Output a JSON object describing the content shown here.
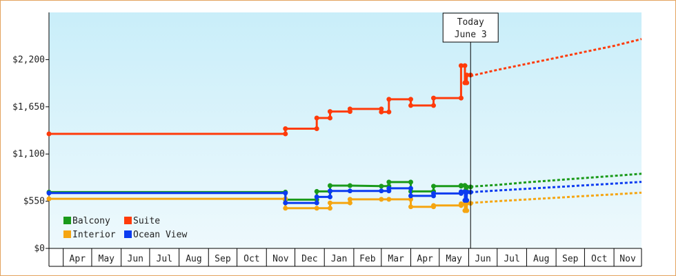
{
  "chart_data": {
    "type": "line",
    "title": "",
    "xlabel": "",
    "ylabel": "",
    "x_range": [
      "2023-03-17",
      "2024-11-30"
    ],
    "ylim": [
      0,
      2750
    ],
    "y_ticks": [
      {
        "value": 0,
        "label": "$0"
      },
      {
        "value": 550,
        "label": "$550"
      },
      {
        "value": 1100,
        "label": "$1,100"
      },
      {
        "value": 1650,
        "label": "$1,650"
      },
      {
        "value": 2200,
        "label": "$2,200"
      }
    ],
    "x_ticks": [
      {
        "start": "2023-04-01",
        "end": "2023-05-01",
        "label": "Apr"
      },
      {
        "start": "2023-05-01",
        "end": "2023-06-01",
        "label": "May"
      },
      {
        "start": "2023-06-01",
        "end": "2023-07-01",
        "label": "Jun"
      },
      {
        "start": "2023-07-01",
        "end": "2023-08-01",
        "label": "Jul"
      },
      {
        "start": "2023-08-01",
        "end": "2023-09-01",
        "label": "Aug"
      },
      {
        "start": "2023-09-01",
        "end": "2023-10-01",
        "label": "Sep"
      },
      {
        "start": "2023-10-01",
        "end": "2023-11-01",
        "label": "Oct"
      },
      {
        "start": "2023-11-01",
        "end": "2023-12-01",
        "label": "Nov"
      },
      {
        "start": "2023-12-01",
        "end": "2024-01-01",
        "label": "Dec"
      },
      {
        "start": "2024-01-01",
        "end": "2024-02-01",
        "label": "Jan"
      },
      {
        "start": "2024-02-01",
        "end": "2024-03-01",
        "label": "Feb"
      },
      {
        "start": "2024-03-01",
        "end": "2024-04-01",
        "label": "Mar"
      },
      {
        "start": "2024-04-01",
        "end": "2024-05-01",
        "label": "Apr"
      },
      {
        "start": "2024-05-01",
        "end": "2024-06-01",
        "label": "May"
      },
      {
        "start": "2024-06-01",
        "end": "2024-07-01",
        "label": "Jun"
      },
      {
        "start": "2024-07-01",
        "end": "2024-08-01",
        "label": "Jul"
      },
      {
        "start": "2024-08-01",
        "end": "2024-09-01",
        "label": "Aug"
      },
      {
        "start": "2024-09-01",
        "end": "2024-10-01",
        "label": "Sep"
      },
      {
        "start": "2024-10-01",
        "end": "2024-11-01",
        "label": "Oct"
      },
      {
        "start": "2024-11-01",
        "end": "2024-12-01",
        "label": "Nov"
      }
    ],
    "today": {
      "date": "2024-06-03",
      "line1": "Today",
      "line2": "June 3"
    },
    "grid": false,
    "legend_position": "bottom-left",
    "background_gradient": [
      "#c9eef9",
      "#eef9fd"
    ],
    "series": [
      {
        "name": "Balcony",
        "color": "#1a9a1a",
        "points": [
          [
            "2023-03-17",
            656
          ],
          [
            "2023-11-21",
            656
          ],
          [
            "2023-11-21",
            568
          ],
          [
            "2023-12-24",
            568
          ],
          [
            "2023-12-24",
            664
          ],
          [
            "2024-01-07",
            664
          ],
          [
            "2024-01-07",
            732
          ],
          [
            "2024-01-28",
            732
          ],
          [
            "2024-03-01",
            725
          ],
          [
            "2024-03-09",
            725
          ],
          [
            "2024-03-09",
            773
          ],
          [
            "2024-04-01",
            773
          ],
          [
            "2024-04-01",
            664
          ],
          [
            "2024-04-25",
            664
          ],
          [
            "2024-04-25",
            725
          ],
          [
            "2024-05-24",
            725
          ],
          [
            "2024-05-24",
            734
          ],
          [
            "2024-05-28",
            734
          ],
          [
            "2024-05-28",
            664
          ],
          [
            "2024-05-30",
            664
          ],
          [
            "2024-05-30",
            716
          ],
          [
            "2024-06-03",
            716
          ]
        ],
        "projection": [
          [
            "2024-06-03",
            720
          ],
          [
            "2024-07-01",
            740
          ],
          [
            "2024-08-01",
            770
          ],
          [
            "2024-09-01",
            795
          ],
          [
            "2024-10-01",
            820
          ],
          [
            "2024-11-01",
            845
          ],
          [
            "2024-11-30",
            870
          ]
        ]
      },
      {
        "name": "Suite",
        "color": "#ff3b0a",
        "points": [
          [
            "2023-03-17",
            1335
          ],
          [
            "2023-11-21",
            1335
          ],
          [
            "2023-11-21",
            1395
          ],
          [
            "2023-12-24",
            1395
          ],
          [
            "2023-12-24",
            1520
          ],
          [
            "2024-01-07",
            1520
          ],
          [
            "2024-01-07",
            1595
          ],
          [
            "2024-01-28",
            1595
          ],
          [
            "2024-01-28",
            1625
          ],
          [
            "2024-03-01",
            1625
          ],
          [
            "2024-03-01",
            1590
          ],
          [
            "2024-03-09",
            1590
          ],
          [
            "2024-03-09",
            1738
          ],
          [
            "2024-04-01",
            1738
          ],
          [
            "2024-04-01",
            1665
          ],
          [
            "2024-04-25",
            1665
          ],
          [
            "2024-04-25",
            1752
          ],
          [
            "2024-05-24",
            1752
          ],
          [
            "2024-05-24",
            2130
          ],
          [
            "2024-05-28",
            2130
          ],
          [
            "2024-05-28",
            1930
          ],
          [
            "2024-05-30",
            1930
          ],
          [
            "2024-05-30",
            2020
          ],
          [
            "2024-06-03",
            2020
          ]
        ],
        "projection": [
          [
            "2024-06-03",
            2010
          ],
          [
            "2024-07-01",
            2080
          ],
          [
            "2024-08-01",
            2150
          ],
          [
            "2024-09-01",
            2220
          ],
          [
            "2024-10-01",
            2290
          ],
          [
            "2024-11-01",
            2360
          ],
          [
            "2024-11-30",
            2440
          ]
        ]
      },
      {
        "name": "Interior",
        "color": "#f5a511",
        "points": [
          [
            "2023-03-17",
            578
          ],
          [
            "2023-11-21",
            578
          ],
          [
            "2023-11-21",
            468
          ],
          [
            "2023-12-24",
            468
          ],
          [
            "2024-01-07",
            468
          ],
          [
            "2024-01-07",
            530
          ],
          [
            "2024-01-28",
            530
          ],
          [
            "2024-01-28",
            572
          ],
          [
            "2024-03-01",
            572
          ],
          [
            "2024-03-09",
            572
          ],
          [
            "2024-04-01",
            572
          ],
          [
            "2024-04-01",
            485
          ],
          [
            "2024-04-25",
            485
          ],
          [
            "2024-04-25",
            500
          ],
          [
            "2024-05-24",
            500
          ],
          [
            "2024-05-24",
            520
          ],
          [
            "2024-05-28",
            520
          ],
          [
            "2024-05-28",
            440
          ],
          [
            "2024-05-30",
            440
          ],
          [
            "2024-05-30",
            525
          ],
          [
            "2024-06-03",
            525
          ]
        ],
        "projection": [
          [
            "2024-06-03",
            530
          ],
          [
            "2024-07-01",
            550
          ],
          [
            "2024-08-01",
            570
          ],
          [
            "2024-09-01",
            590
          ],
          [
            "2024-10-01",
            610
          ],
          [
            "2024-11-01",
            630
          ],
          [
            "2024-11-30",
            650
          ]
        ]
      },
      {
        "name": "Ocean View",
        "color": "#0b3bf0",
        "points": [
          [
            "2023-03-17",
            645
          ],
          [
            "2023-11-21",
            645
          ],
          [
            "2023-11-21",
            530
          ],
          [
            "2023-12-24",
            530
          ],
          [
            "2023-12-24",
            600
          ],
          [
            "2024-01-07",
            600
          ],
          [
            "2024-01-07",
            670
          ],
          [
            "2024-01-28",
            670
          ],
          [
            "2024-03-01",
            670
          ],
          [
            "2024-03-09",
            670
          ],
          [
            "2024-03-09",
            700
          ],
          [
            "2024-04-01",
            700
          ],
          [
            "2024-04-01",
            612
          ],
          [
            "2024-04-25",
            612
          ],
          [
            "2024-04-25",
            640
          ],
          [
            "2024-05-24",
            640
          ],
          [
            "2024-05-24",
            660
          ],
          [
            "2024-05-28",
            660
          ],
          [
            "2024-05-28",
            560
          ],
          [
            "2024-05-30",
            560
          ],
          [
            "2024-05-30",
            655
          ],
          [
            "2024-06-03",
            655
          ]
        ],
        "projection": [
          [
            "2024-06-03",
            655
          ],
          [
            "2024-07-01",
            675
          ],
          [
            "2024-08-01",
            695
          ],
          [
            "2024-09-01",
            715
          ],
          [
            "2024-10-01",
            735
          ],
          [
            "2024-11-01",
            755
          ],
          [
            "2024-11-30",
            775
          ]
        ]
      }
    ],
    "legend": [
      {
        "label": "Balcony",
        "color": "#1a9a1a"
      },
      {
        "label": "Suite",
        "color": "#ff3b0a"
      },
      {
        "label": "Interior",
        "color": "#f5a511"
      },
      {
        "label": "Ocean View",
        "color": "#0b3bf0"
      }
    ]
  }
}
